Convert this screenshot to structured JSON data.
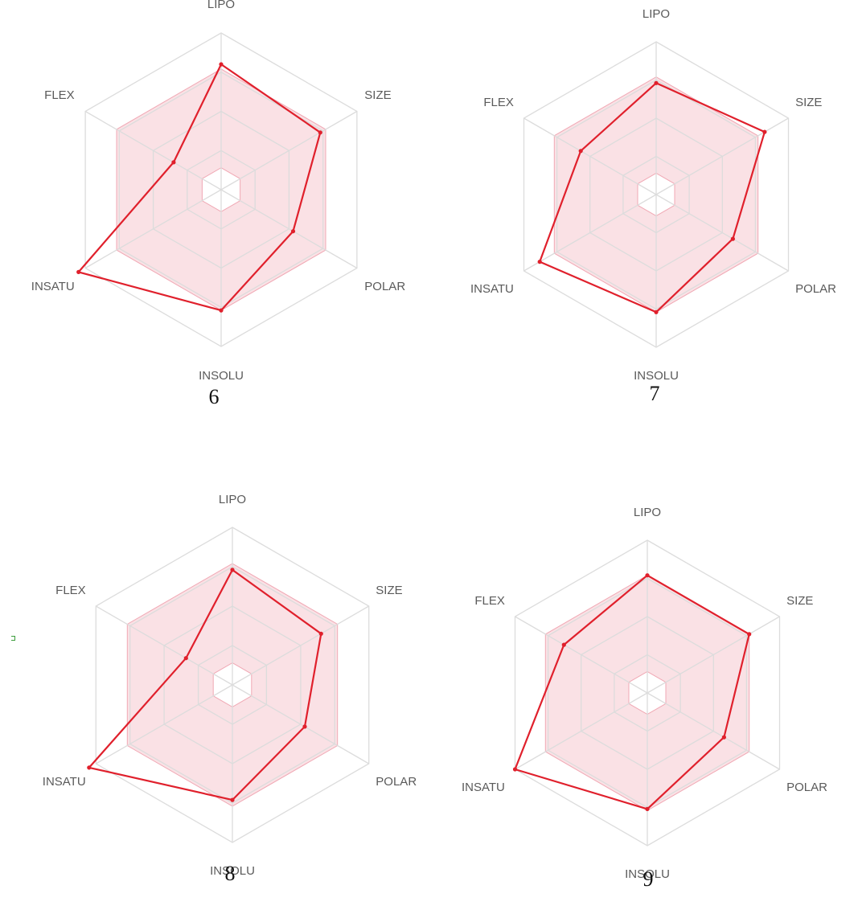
{
  "colors": {
    "series_line": "#e0202c",
    "range_fill": "#f6c9d0",
    "range_stroke": "#f0a8b4",
    "grid": "#dcdcdc"
  },
  "chart_data": [
    {
      "type": "radar",
      "panel_label": "6",
      "axes": [
        "LIPO",
        "SIZE",
        "POLAR",
        "INSOLU",
        "INSATU",
        "FLEX"
      ],
      "rlim": [
        0,
        1
      ],
      "grid_rings": 4,
      "optimal_range": {
        "inner": [
          0.14,
          0.14,
          0.14,
          0.14,
          0.14,
          0.14
        ],
        "outer": [
          0.77,
          0.77,
          0.77,
          0.77,
          0.77,
          0.77
        ]
      },
      "values": [
        0.8,
        0.73,
        0.53,
        0.77,
        1.05,
        0.35
      ]
    },
    {
      "type": "radar",
      "panel_label": "7",
      "axes": [
        "LIPO",
        "SIZE",
        "POLAR",
        "INSOLU",
        "INSATU",
        "FLEX"
      ],
      "rlim": [
        0,
        1
      ],
      "grid_rings": 4,
      "optimal_range": {
        "inner": [
          0.14,
          0.14,
          0.14,
          0.14,
          0.14,
          0.14
        ],
        "outer": [
          0.77,
          0.77,
          0.77,
          0.77,
          0.77,
          0.77
        ]
      },
      "values": [
        0.73,
        0.82,
        0.58,
        0.77,
        0.88,
        0.57
      ]
    },
    {
      "type": "radar",
      "panel_label": "8",
      "axes": [
        "LIPO",
        "SIZE",
        "POLAR",
        "INSOLU",
        "INSATU",
        "FLEX"
      ],
      "rlim": [
        0,
        1
      ],
      "grid_rings": 4,
      "optimal_range": {
        "inner": [
          0.14,
          0.14,
          0.14,
          0.14,
          0.14,
          0.14
        ],
        "outer": [
          0.77,
          0.77,
          0.77,
          0.77,
          0.77,
          0.77
        ]
      },
      "values": [
        0.73,
        0.65,
        0.53,
        0.73,
        1.05,
        0.34
      ]
    },
    {
      "type": "radar",
      "panel_label": "9",
      "axes": [
        "LIPO",
        "SIZE",
        "POLAR",
        "INSOLU",
        "INSATU",
        "FLEX"
      ],
      "rlim": [
        0,
        1
      ],
      "grid_rings": 4,
      "optimal_range": {
        "inner": [
          0.14,
          0.14,
          0.14,
          0.14,
          0.14,
          0.14
        ],
        "outer": [
          0.77,
          0.77,
          0.77,
          0.77,
          0.77,
          0.77
        ]
      },
      "values": [
        0.77,
        0.77,
        0.58,
        0.76,
        1.0,
        0.63
      ]
    }
  ]
}
